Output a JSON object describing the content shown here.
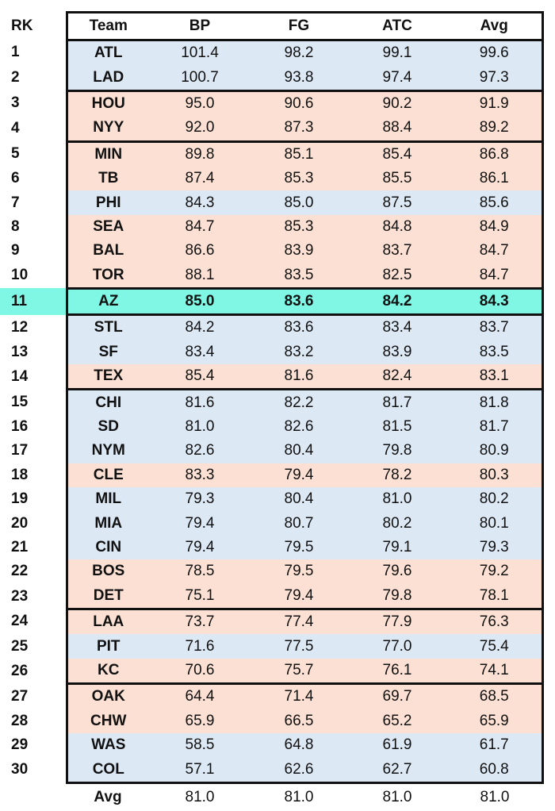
{
  "table": {
    "headers": {
      "rk": "RK",
      "team": "Team",
      "bp": "BP",
      "fg": "FG",
      "atc": "ATC",
      "avg": "Avg"
    },
    "colors": {
      "blue": "#dde8f5",
      "peach": "#fbe0d3",
      "highlight": "#7ff7e4",
      "border": "#111111"
    },
    "highlighted_rank": 11,
    "rows": [
      {
        "rk": "1",
        "team": "ATL",
        "bp": "101.4",
        "fg": "98.2",
        "atc": "99.1",
        "avg": "99.6",
        "color": "blue"
      },
      {
        "rk": "2",
        "team": "LAD",
        "bp": "100.7",
        "fg": "93.8",
        "atc": "97.4",
        "avg": "97.3",
        "color": "blue"
      },
      {
        "rk": "3",
        "team": "HOU",
        "bp": "95.0",
        "fg": "90.6",
        "atc": "90.2",
        "avg": "91.9",
        "color": "peach"
      },
      {
        "rk": "4",
        "team": "NYY",
        "bp": "92.0",
        "fg": "87.3",
        "atc": "88.4",
        "avg": "89.2",
        "color": "peach"
      },
      {
        "rk": "5",
        "team": "MIN",
        "bp": "89.8",
        "fg": "85.1",
        "atc": "85.4",
        "avg": "86.8",
        "color": "peach"
      },
      {
        "rk": "6",
        "team": "TB",
        "bp": "87.4",
        "fg": "85.3",
        "atc": "85.5",
        "avg": "86.1",
        "color": "peach"
      },
      {
        "rk": "7",
        "team": "PHI",
        "bp": "84.3",
        "fg": "85.0",
        "atc": "87.5",
        "avg": "85.6",
        "color": "blue"
      },
      {
        "rk": "8",
        "team": "SEA",
        "bp": "84.7",
        "fg": "85.3",
        "atc": "84.8",
        "avg": "84.9",
        "color": "peach"
      },
      {
        "rk": "9",
        "team": "BAL",
        "bp": "86.6",
        "fg": "83.9",
        "atc": "83.7",
        "avg": "84.7",
        "color": "peach"
      },
      {
        "rk": "10",
        "team": "TOR",
        "bp": "88.1",
        "fg": "83.5",
        "atc": "82.5",
        "avg": "84.7",
        "color": "peach"
      },
      {
        "rk": "11",
        "team": "AZ",
        "bp": "85.0",
        "fg": "83.6",
        "atc": "84.2",
        "avg": "84.3",
        "color": "highlight"
      },
      {
        "rk": "12",
        "team": "STL",
        "bp": "84.2",
        "fg": "83.6",
        "atc": "83.4",
        "avg": "83.7",
        "color": "blue"
      },
      {
        "rk": "13",
        "team": "SF",
        "bp": "83.4",
        "fg": "83.2",
        "atc": "83.9",
        "avg": "83.5",
        "color": "blue"
      },
      {
        "rk": "14",
        "team": "TEX",
        "bp": "85.4",
        "fg": "81.6",
        "atc": "82.4",
        "avg": "83.1",
        "color": "peach"
      },
      {
        "rk": "15",
        "team": "CHI",
        "bp": "81.6",
        "fg": "82.2",
        "atc": "81.7",
        "avg": "81.8",
        "color": "blue"
      },
      {
        "rk": "16",
        "team": "SD",
        "bp": "81.0",
        "fg": "82.6",
        "atc": "81.5",
        "avg": "81.7",
        "color": "blue"
      },
      {
        "rk": "17",
        "team": "NYM",
        "bp": "82.6",
        "fg": "80.4",
        "atc": "79.8",
        "avg": "80.9",
        "color": "blue"
      },
      {
        "rk": "18",
        "team": "CLE",
        "bp": "83.3",
        "fg": "79.4",
        "atc": "78.2",
        "avg": "80.3",
        "color": "peach"
      },
      {
        "rk": "19",
        "team": "MIL",
        "bp": "79.3",
        "fg": "80.4",
        "atc": "81.0",
        "avg": "80.2",
        "color": "blue"
      },
      {
        "rk": "20",
        "team": "MIA",
        "bp": "79.4",
        "fg": "80.7",
        "atc": "80.2",
        "avg": "80.1",
        "color": "blue"
      },
      {
        "rk": "21",
        "team": "CIN",
        "bp": "79.4",
        "fg": "79.5",
        "atc": "79.1",
        "avg": "79.3",
        "color": "blue"
      },
      {
        "rk": "22",
        "team": "BOS",
        "bp": "78.5",
        "fg": "79.5",
        "atc": "79.6",
        "avg": "79.2",
        "color": "peach"
      },
      {
        "rk": "23",
        "team": "DET",
        "bp": "75.1",
        "fg": "79.4",
        "atc": "79.8",
        "avg": "78.1",
        "color": "peach"
      },
      {
        "rk": "24",
        "team": "LAA",
        "bp": "73.7",
        "fg": "77.4",
        "atc": "77.9",
        "avg": "76.3",
        "color": "peach"
      },
      {
        "rk": "25",
        "team": "PIT",
        "bp": "71.6",
        "fg": "77.5",
        "atc": "77.0",
        "avg": "75.4",
        "color": "blue"
      },
      {
        "rk": "26",
        "team": "KC",
        "bp": "70.6",
        "fg": "75.7",
        "atc": "76.1",
        "avg": "74.1",
        "color": "peach"
      },
      {
        "rk": "27",
        "team": "OAK",
        "bp": "64.4",
        "fg": "71.4",
        "atc": "69.7",
        "avg": "68.5",
        "color": "peach"
      },
      {
        "rk": "28",
        "team": "CHW",
        "bp": "65.9",
        "fg": "66.5",
        "atc": "65.2",
        "avg": "65.9",
        "color": "peach"
      },
      {
        "rk": "29",
        "team": "WAS",
        "bp": "58.5",
        "fg": "64.8",
        "atc": "61.9",
        "avg": "61.7",
        "color": "blue"
      },
      {
        "rk": "30",
        "team": "COL",
        "bp": "57.1",
        "fg": "62.6",
        "atc": "62.7",
        "avg": "60.8",
        "color": "blue"
      }
    ],
    "group_separator_after_ranks": [
      2,
      4,
      10,
      11,
      14,
      23,
      26,
      30
    ],
    "footer": {
      "label": "Avg",
      "bp": "81.0",
      "fg": "81.0",
      "atc": "81.0",
      "avg": "81.0"
    }
  }
}
